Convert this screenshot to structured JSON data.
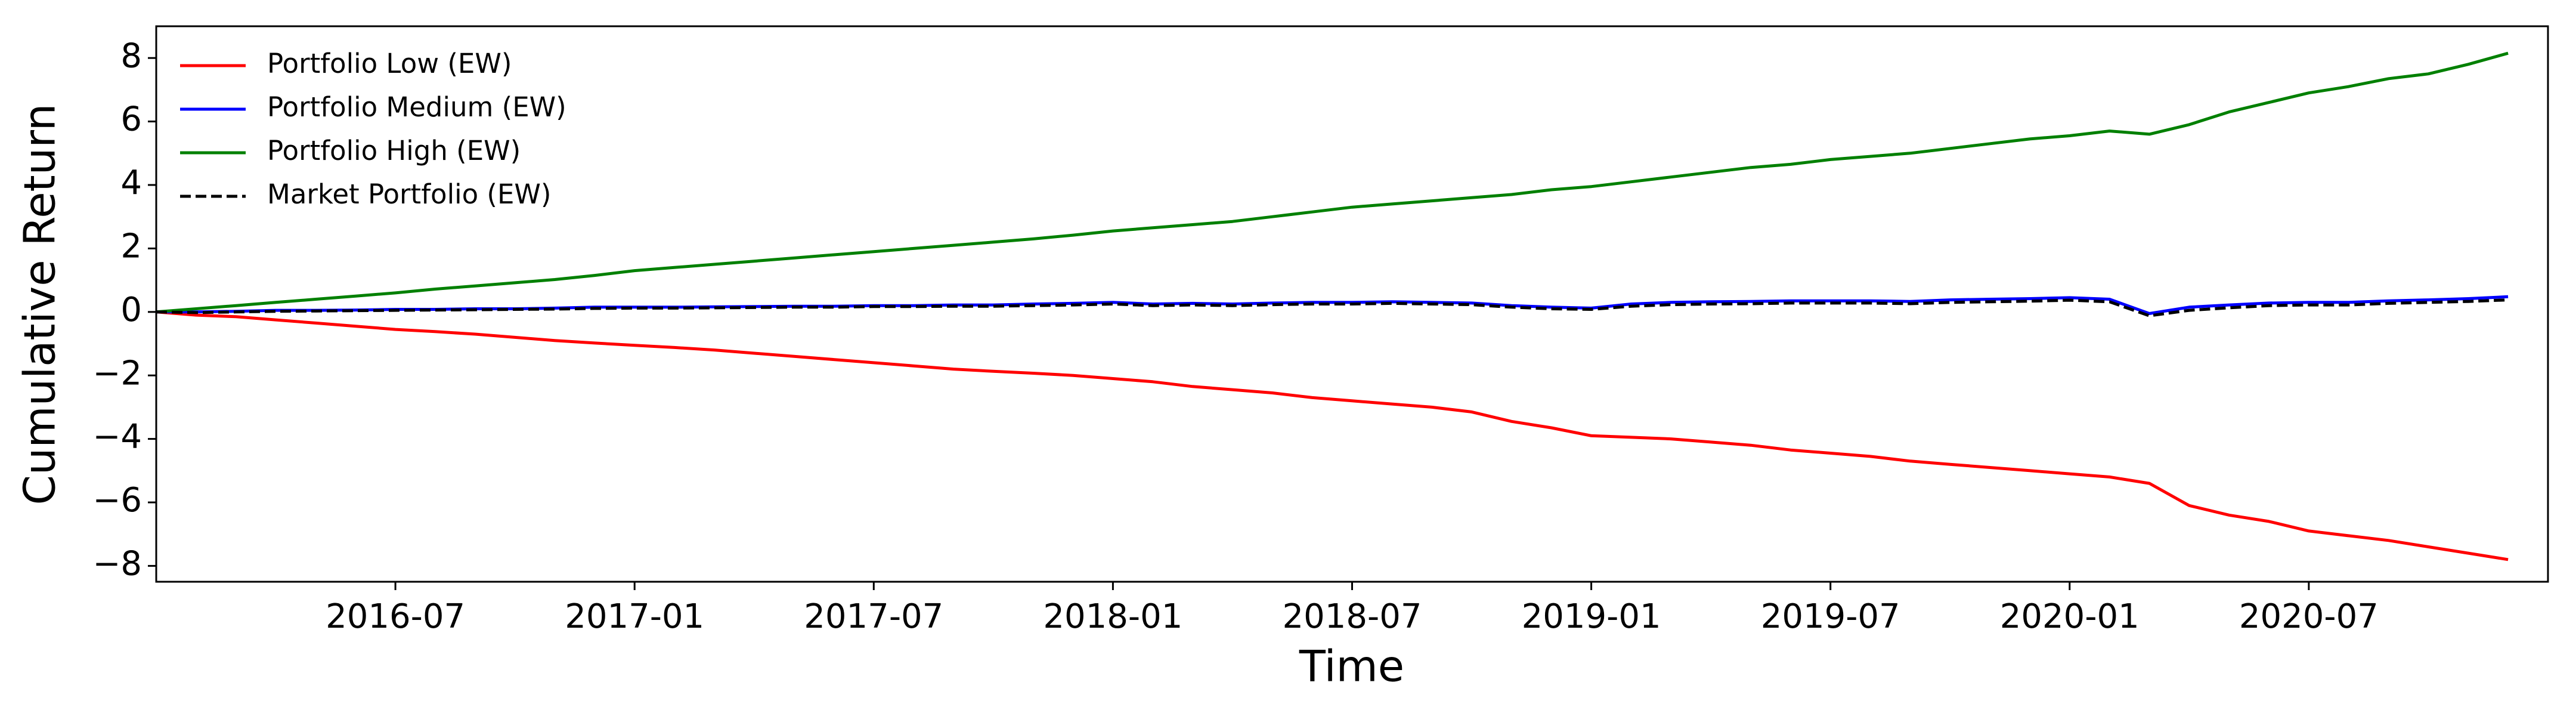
{
  "chart_data": {
    "type": "line",
    "x_label": "Time",
    "y_label": "Cumulative Return",
    "x": [
      "2016-01",
      "2016-02",
      "2016-03",
      "2016-04",
      "2016-05",
      "2016-06",
      "2016-07",
      "2016-08",
      "2016-09",
      "2016-10",
      "2016-11",
      "2016-12",
      "2017-01",
      "2017-02",
      "2017-03",
      "2017-04",
      "2017-05",
      "2017-06",
      "2017-07",
      "2017-08",
      "2017-09",
      "2017-10",
      "2017-11",
      "2017-12",
      "2018-01",
      "2018-02",
      "2018-03",
      "2018-04",
      "2018-05",
      "2018-06",
      "2018-07",
      "2018-08",
      "2018-09",
      "2018-10",
      "2018-11",
      "2018-12",
      "2019-01",
      "2019-02",
      "2019-03",
      "2019-04",
      "2019-05",
      "2019-06",
      "2019-07",
      "2019-08",
      "2019-09",
      "2019-10",
      "2019-11",
      "2019-12",
      "2020-01",
      "2020-02",
      "2020-03",
      "2020-04",
      "2020-05",
      "2020-06",
      "2020-07",
      "2020-08",
      "2020-09",
      "2020-10",
      "2020-11",
      "2020-12"
    ],
    "series": [
      {
        "name": "Portfolio Low (EW)",
        "color": "#ff0000",
        "dashed": false,
        "values": [
          0,
          -0.1,
          -0.15,
          -0.25,
          -0.35,
          -0.45,
          -0.55,
          -0.62,
          -0.7,
          -0.8,
          -0.9,
          -0.98,
          -1.05,
          -1.12,
          -1.2,
          -1.3,
          -1.4,
          -1.5,
          -1.6,
          -1.7,
          -1.8,
          -1.87,
          -1.93,
          -2.0,
          -2.1,
          -2.2,
          -2.35,
          -2.45,
          -2.55,
          -2.7,
          -2.8,
          -2.9,
          -3.0,
          -3.15,
          -3.45,
          -3.65,
          -3.9,
          -3.95,
          -4.0,
          -4.1,
          -4.2,
          -4.35,
          -4.45,
          -4.55,
          -4.7,
          -4.8,
          -4.9,
          -5.0,
          -5.1,
          -5.2,
          -5.4,
          -6.1,
          -6.4,
          -6.6,
          -6.9,
          -7.05,
          -7.2,
          -7.4,
          -7.6,
          -7.8
        ]
      },
      {
        "name": "Portfolio Medium (EW)",
        "color": "#0000ff",
        "dashed": false,
        "values": [
          0,
          0,
          0.02,
          0.05,
          0.05,
          0.06,
          0.08,
          0.08,
          0.1,
          0.1,
          0.12,
          0.15,
          0.15,
          0.15,
          0.16,
          0.17,
          0.18,
          0.18,
          0.2,
          0.2,
          0.22,
          0.22,
          0.25,
          0.27,
          0.3,
          0.25,
          0.27,
          0.25,
          0.28,
          0.3,
          0.3,
          0.32,
          0.3,
          0.28,
          0.2,
          0.15,
          0.12,
          0.25,
          0.3,
          0.32,
          0.33,
          0.35,
          0.35,
          0.35,
          0.33,
          0.38,
          0.4,
          0.42,
          0.45,
          0.4,
          -0.05,
          0.15,
          0.22,
          0.28,
          0.3,
          0.3,
          0.35,
          0.38,
          0.42,
          0.48
        ]
      },
      {
        "name": "Portfolio High (EW)",
        "color": "#008000",
        "dashed": false,
        "values": [
          0,
          0.1,
          0.2,
          0.3,
          0.4,
          0.5,
          0.6,
          0.72,
          0.82,
          0.92,
          1.02,
          1.15,
          1.3,
          1.4,
          1.5,
          1.6,
          1.7,
          1.8,
          1.9,
          2.0,
          2.1,
          2.2,
          2.3,
          2.42,
          2.55,
          2.65,
          2.75,
          2.85,
          3.0,
          3.15,
          3.3,
          3.4,
          3.5,
          3.6,
          3.7,
          3.85,
          3.95,
          4.1,
          4.25,
          4.4,
          4.55,
          4.65,
          4.8,
          4.9,
          5.0,
          5.15,
          5.3,
          5.45,
          5.55,
          5.7,
          5.6,
          5.9,
          6.3,
          6.6,
          6.9,
          7.1,
          7.35,
          7.5,
          7.8,
          8.15
        ]
      },
      {
        "name": "Market Portfolio (EW)",
        "color": "#000000",
        "dashed": true,
        "values": [
          0,
          -0.02,
          0,
          0.02,
          0.03,
          0.04,
          0.05,
          0.06,
          0.07,
          0.08,
          0.09,
          0.11,
          0.12,
          0.12,
          0.13,
          0.14,
          0.15,
          0.15,
          0.17,
          0.17,
          0.18,
          0.18,
          0.2,
          0.22,
          0.25,
          0.2,
          0.22,
          0.2,
          0.23,
          0.25,
          0.25,
          0.27,
          0.25,
          0.23,
          0.15,
          0.1,
          0.08,
          0.18,
          0.23,
          0.25,
          0.26,
          0.28,
          0.28,
          0.28,
          0.26,
          0.3,
          0.32,
          0.34,
          0.37,
          0.32,
          -0.12,
          0.05,
          0.13,
          0.2,
          0.22,
          0.22,
          0.27,
          0.3,
          0.33,
          0.38
        ]
      }
    ],
    "xlim": [
      "2016-01",
      "2021-01"
    ],
    "xticks": [
      "2016-07",
      "2017-01",
      "2017-07",
      "2018-01",
      "2018-07",
      "2019-01",
      "2019-07",
      "2020-01",
      "2020-07"
    ],
    "ylim": [
      -8.5,
      9
    ],
    "yticks": [
      {
        "value": -8,
        "label": "−8"
      },
      {
        "value": -6,
        "label": "−6"
      },
      {
        "value": -4,
        "label": "−4"
      },
      {
        "value": -2,
        "label": "−2"
      },
      0,
      2,
      4,
      6,
      8
    ],
    "legend": "upper left"
  }
}
